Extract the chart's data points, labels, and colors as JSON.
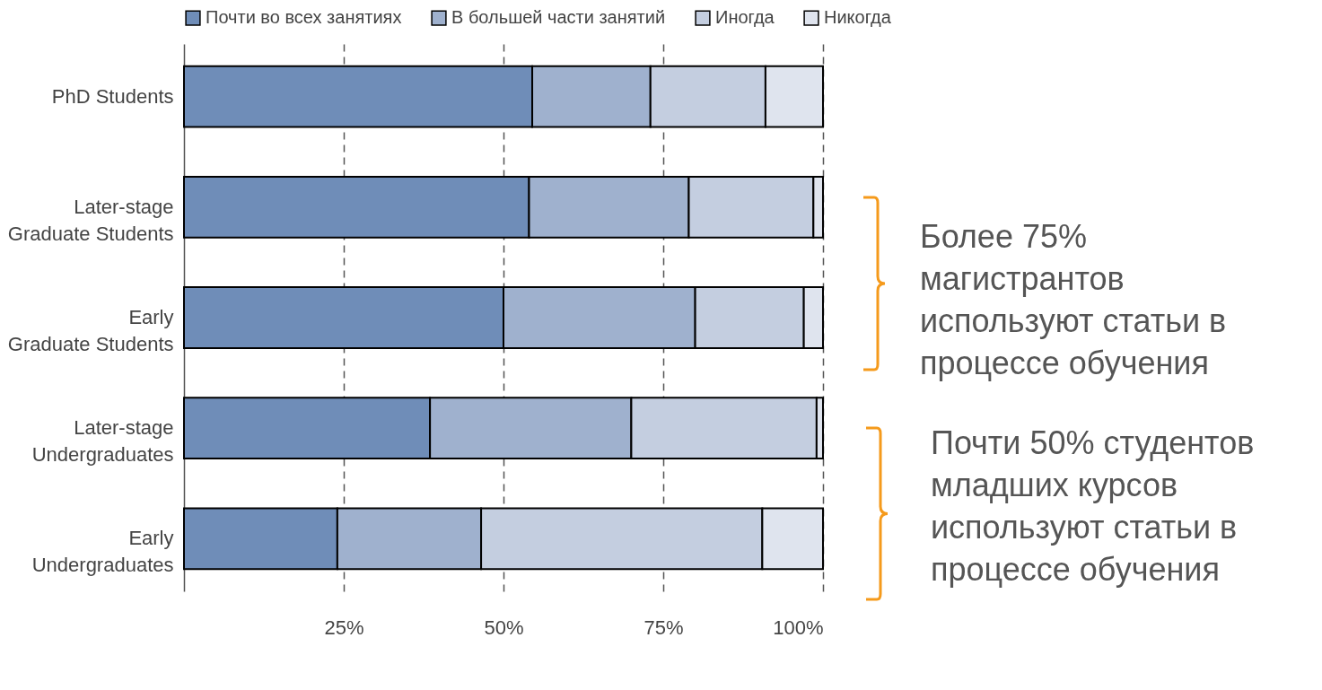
{
  "chart_data": {
    "type": "bar",
    "orientation": "horizontal",
    "stacked": true,
    "categories": [
      "PhD Students",
      "Later-stage\nGraduate Students",
      "Early\nGraduate Students",
      "Later-stage\nUndergraduates",
      "Early\nUndergraduates"
    ],
    "series": [
      {
        "name": "Почти во всех занятиях",
        "color": "#6f8db8",
        "values": [
          54.5,
          54,
          50,
          38.5,
          24
        ]
      },
      {
        "name": "В большей части занятий",
        "color": "#9fb1ce",
        "values": [
          18.5,
          25,
          30,
          31.5,
          22.5
        ]
      },
      {
        "name": "Иногда",
        "color": "#c4cee0",
        "values": [
          18,
          19.5,
          17,
          29,
          44
        ]
      },
      {
        "name": "Никогда",
        "color": "#dfe4ee",
        "values": [
          9,
          1.5,
          3,
          1,
          9.5
        ]
      }
    ],
    "xlim": [
      0,
      100
    ],
    "xticks": [
      {
        "value": 25,
        "label": "25%"
      },
      {
        "value": 50,
        "label": "50%"
      },
      {
        "value": 75,
        "label": "75%"
      },
      {
        "value": 100,
        "label": "100%"
      }
    ],
    "grid": "x",
    "legend": "top",
    "annotations": [
      "Более 75% магистрантов используют статьи в процессе обучения",
      "Почти 50% студентов младших курсов используют статьи в процессе обучения"
    ]
  }
}
